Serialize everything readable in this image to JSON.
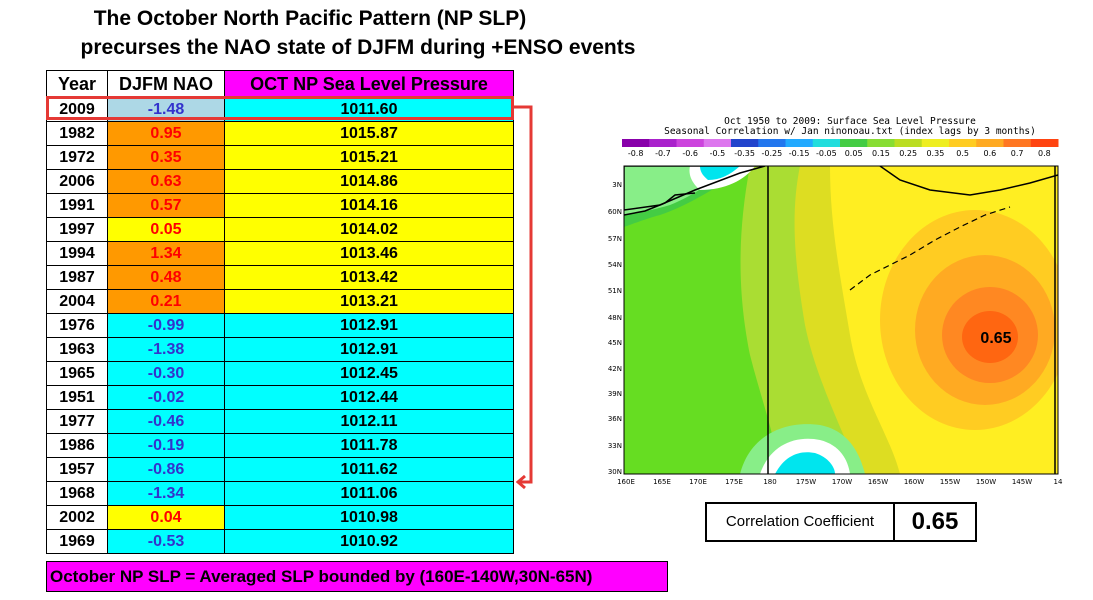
{
  "title_line1": "The October North Pacific Pattern (NP SLP)",
  "title_line2": "precurses the NAO state of DJFM during +ENSO events",
  "table": {
    "headers": [
      "Year",
      "DJFM NAO",
      "OCT NP Sea Level Pressure"
    ],
    "rows": [
      {
        "year": "2009",
        "nao": "-1.48",
        "slp": "1011.60"
      },
      {
        "year": "1982",
        "nao": "0.95",
        "slp": "1015.87"
      },
      {
        "year": "1972",
        "nao": "0.35",
        "slp": "1015.21"
      },
      {
        "year": "2006",
        "nao": "0.63",
        "slp": "1014.86"
      },
      {
        "year": "1991",
        "nao": "0.57",
        "slp": "1014.16"
      },
      {
        "year": "1997",
        "nao": "0.05",
        "slp": "1014.02"
      },
      {
        "year": "1994",
        "nao": "1.34",
        "slp": "1013.46"
      },
      {
        "year": "1987",
        "nao": "0.48",
        "slp": "1013.42"
      },
      {
        "year": "2004",
        "nao": "0.21",
        "slp": "1013.21"
      },
      {
        "year": "1976",
        "nao": "-0.99",
        "slp": "1012.91"
      },
      {
        "year": "1963",
        "nao": "-1.38",
        "slp": "1012.91"
      },
      {
        "year": "1965",
        "nao": "-0.30",
        "slp": "1012.45"
      },
      {
        "year": "1951",
        "nao": "-0.02",
        "slp": "1012.44"
      },
      {
        "year": "1977",
        "nao": "-0.46",
        "slp": "1012.11"
      },
      {
        "year": "1986",
        "nao": "-0.19",
        "slp": "1011.78"
      },
      {
        "year": "1957",
        "nao": "-0.86",
        "slp": "1011.62"
      },
      {
        "year": "1968",
        "nao": "-1.34",
        "slp": "1011.06"
      },
      {
        "year": "2002",
        "nao": "0.04",
        "slp": "1010.98"
      },
      {
        "year": "1969",
        "nao": "-0.53",
        "slp": "1010.92"
      }
    ]
  },
  "footer_note": "October NP SLP = Averaged SLP bounded by (160E-140W,30N-65N)",
  "correlation": {
    "label": "Correlation Coefficient",
    "value": "0.65"
  },
  "map": {
    "title_line1": "Oct 1950 to 2009: Surface Sea Level Pressure",
    "title_line2": "Seasonal Correlation w/ Jan ninonoau.txt (index lags by 3 months)",
    "colorbar_labels": [
      "-0.8",
      "-0.7",
      "-0.6",
      "-0.5",
      "-0.35",
      "-0.25",
      "-0.15",
      "-0.05",
      "0.05",
      "0.15",
      "0.25",
      "0.35",
      "0.5",
      "0.6",
      "0.7",
      "0.8"
    ],
    "y_ticks": [
      "3N",
      "60N",
      "57N",
      "54N",
      "51N",
      "48N",
      "45N",
      "42N",
      "39N",
      "36N",
      "33N",
      "30N"
    ],
    "x_ticks": [
      "160E",
      "165E",
      "170E",
      "175E",
      "180",
      "175W",
      "170W",
      "165W",
      "160W",
      "155W",
      "150W",
      "145W",
      "14"
    ],
    "max_label": "0.65"
  },
  "chart_data": {
    "type": "table",
    "columns": [
      "Year",
      "DJFM NAO",
      "OCT NP Sea Level Pressure"
    ],
    "rows": [
      [
        2009,
        -1.48,
        1011.6
      ],
      [
        1982,
        0.95,
        1015.87
      ],
      [
        1972,
        0.35,
        1015.21
      ],
      [
        2006,
        0.63,
        1014.86
      ],
      [
        1991,
        0.57,
        1014.16
      ],
      [
        1997,
        0.05,
        1014.02
      ],
      [
        1994,
        1.34,
        1013.46
      ],
      [
        1987,
        0.48,
        1013.42
      ],
      [
        2004,
        0.21,
        1013.21
      ],
      [
        1976,
        -0.99,
        1012.91
      ],
      [
        1963,
        -1.38,
        1012.91
      ],
      [
        1965,
        -0.3,
        1012.45
      ],
      [
        1951,
        -0.02,
        1012.44
      ],
      [
        1977,
        -0.46,
        1012.11
      ],
      [
        1986,
        -0.19,
        1011.78
      ],
      [
        1957,
        -0.86,
        1011.62
      ],
      [
        1968,
        -1.34,
        1011.06
      ],
      [
        2002,
        0.04,
        1010.98
      ],
      [
        1969,
        -0.53,
        1010.92
      ]
    ]
  },
  "colors": {
    "nao_positive_strong_bg": "#ff9900",
    "nao_positive_weak_bg": "#ffff00",
    "nao_negative_bg": "#00ffff",
    "nao_2009_bg": "#add8e6",
    "nao_positive_text": "#ff0000",
    "nao_negative_text": "#3333cc",
    "slp_high_bg": "#ffff00",
    "slp_low_bg": "#00ffff",
    "header_slp_bg": "#ff00ff",
    "red_highlight": "#e53935"
  }
}
